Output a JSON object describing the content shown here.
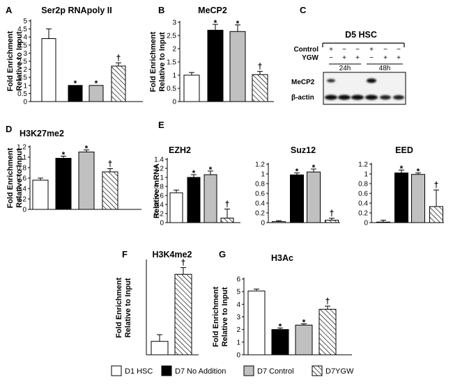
{
  "colors": {
    "d1_hsc": "#ffffff",
    "d7_no_addition": "#000000",
    "d7_control": "#c0c0c0",
    "d7_ygw": "hatch"
  },
  "legend": [
    {
      "key": "d1_hsc",
      "label": "D1 HSC"
    },
    {
      "key": "d7_no_addition",
      "label": "D7 No Addition"
    },
    {
      "key": "d7_control",
      "label": "D7 Control"
    },
    {
      "key": "d7_ygw",
      "label": "D7YGW"
    }
  ],
  "chart_data": [
    {
      "id": "A",
      "type": "bar",
      "panel_label": "A",
      "title": "Ser2p RNApoly II",
      "ylabel": [
        "Fold Enrichment",
        "Relative to Input"
      ],
      "ylim": [
        0,
        5
      ],
      "ticks": [
        0,
        0.5,
        1,
        1.5,
        2,
        2.5,
        3,
        3.5,
        4,
        4.5,
        5
      ],
      "tick_labels": [
        "0",
        "0.5",
        "1",
        "1.5",
        "2",
        "2.5",
        "3",
        "3.5",
        "4",
        "4.5",
        "5"
      ],
      "series": [
        {
          "key": "d1_hsc",
          "value": 3.9,
          "error": 0.6,
          "mark": ""
        },
        {
          "key": "d7_no_addition",
          "value": 1.0,
          "error": 0,
          "mark": "*"
        },
        {
          "key": "d7_control",
          "value": 1.0,
          "error": 0,
          "mark": "*"
        },
        {
          "key": "d7_ygw",
          "value": 2.2,
          "error": 0.2,
          "mark": "†"
        }
      ]
    },
    {
      "id": "B",
      "type": "bar",
      "panel_label": "B",
      "title": "MeCP2",
      "ylabel": [
        "Fold Enrichment",
        "Relative to Input"
      ],
      "ylim": [
        0,
        3
      ],
      "ticks": [
        0,
        0.5,
        1,
        1.5,
        2,
        2.5,
        3
      ],
      "tick_labels": [
        "0",
        "0.5",
        "1",
        "1.5",
        "2",
        "2.5",
        "3"
      ],
      "series": [
        {
          "key": "d1_hsc",
          "value": 1.0,
          "error": 0.1,
          "mark": ""
        },
        {
          "key": "d7_no_addition",
          "value": 2.7,
          "error": 0.22,
          "mark": "*"
        },
        {
          "key": "d7_control",
          "value": 2.65,
          "error": 0.25,
          "mark": "*"
        },
        {
          "key": "d7_ygw",
          "value": 1.02,
          "error": 0.12,
          "mark": "†"
        }
      ]
    },
    {
      "id": "D",
      "type": "bar",
      "panel_label": "D",
      "title": "H3K27me2",
      "ylabel": [
        "Fold Enrichment",
        "Relative to Input"
      ],
      "ylim": [
        0,
        1.2
      ],
      "ticks": [
        0,
        0.2,
        0.4,
        0.6,
        0.8,
        1,
        1.2
      ],
      "tick_labels": [
        "0",
        "0.2",
        "0.4",
        "0.6",
        "0.8",
        "1",
        "1.2"
      ],
      "series": [
        {
          "key": "d1_hsc",
          "value": 0.56,
          "error": 0.04,
          "mark": ""
        },
        {
          "key": "d7_no_addition",
          "value": 0.98,
          "error": 0.04,
          "mark": "*"
        },
        {
          "key": "d7_control",
          "value": 1.1,
          "error": 0.04,
          "mark": "*"
        },
        {
          "key": "d7_ygw",
          "value": 0.72,
          "error": 0.06,
          "mark": "†"
        }
      ]
    },
    {
      "id": "E1",
      "type": "bar",
      "panel_label": "E",
      "title": "EZH2",
      "ylabel": [
        "Relative mRNA"
      ],
      "ylim": [
        0,
        1.4
      ],
      "ticks": [
        0,
        0.2,
        0.4,
        0.6,
        0.8,
        1,
        1.2,
        1.4
      ],
      "tick_labels": [
        "0",
        "0.2",
        "0.4",
        "0.6",
        "0.8",
        "1",
        "1.2",
        "1.4"
      ],
      "series": [
        {
          "key": "d1_hsc",
          "value": 0.66,
          "error": 0.06,
          "mark": ""
        },
        {
          "key": "d7_no_addition",
          "value": 1.0,
          "error": 0.06,
          "mark": "*"
        },
        {
          "key": "d7_control",
          "value": 1.06,
          "error": 0.08,
          "mark": "*"
        },
        {
          "key": "d7_ygw",
          "value": 0.1,
          "error": 0.2,
          "mark": "†"
        }
      ]
    },
    {
      "id": "E2",
      "type": "bar",
      "panel_label": "",
      "title": "Suz12",
      "ylabel": [],
      "ylim": [
        0,
        1.2
      ],
      "ticks": [
        0,
        0.2,
        0.4,
        0.6,
        0.8,
        1,
        1.2
      ],
      "tick_labels": [
        "0",
        "0.2",
        "0.4",
        "0.6",
        "0.8",
        "1",
        "1.2"
      ],
      "series": [
        {
          "key": "d1_hsc",
          "value": 0.02,
          "error": 0.02,
          "mark": ""
        },
        {
          "key": "d7_no_addition",
          "value": 0.98,
          "error": 0.04,
          "mark": "*"
        },
        {
          "key": "d7_control",
          "value": 1.04,
          "error": 0.06,
          "mark": "*"
        },
        {
          "key": "d7_ygw",
          "value": 0.05,
          "error": 0.04,
          "mark": "†"
        }
      ]
    },
    {
      "id": "E3",
      "type": "bar",
      "panel_label": "",
      "title": "EED",
      "ylabel": [],
      "ylim": [
        0,
        1.2
      ],
      "ticks": [
        0,
        0.2,
        0.4,
        0.6,
        0.8,
        1,
        1.2
      ],
      "tick_labels": [
        "0",
        "0.2",
        "0.4",
        "0.6",
        "0.8",
        "1",
        "1.2"
      ],
      "series": [
        {
          "key": "d1_hsc",
          "value": 0.01,
          "error": 0.04,
          "mark": ""
        },
        {
          "key": "d7_no_addition",
          "value": 1.02,
          "error": 0.06,
          "mark": "*"
        },
        {
          "key": "d7_control",
          "value": 0.99,
          "error": 0.03,
          "mark": "*"
        },
        {
          "key": "d7_ygw",
          "value": 0.33,
          "error": 0.34,
          "mark": "†"
        }
      ]
    },
    {
      "id": "F",
      "type": "bar",
      "panel_label": "F",
      "title": "H3K4me2",
      "ylabel": [
        "Fold Enrichment",
        "Relative to Input"
      ],
      "ylim": [
        0,
        7
      ],
      "ticks": [],
      "tick_labels": [],
      "series": [
        {
          "key": "d1_hsc",
          "value": 1.0,
          "error": 0.5,
          "mark": ""
        },
        {
          "key": "d7_ygw",
          "value": 6.0,
          "error": 0.5,
          "mark": "†"
        }
      ]
    },
    {
      "id": "G",
      "type": "bar",
      "panel_label": "G",
      "title": "H3Ac",
      "ylabel": [
        "Fold Enrichment",
        "Relative to Input"
      ],
      "ylim": [
        0,
        6
      ],
      "ticks": [
        0,
        1,
        2,
        3,
        4,
        5,
        6
      ],
      "tick_labels": [
        "0",
        "1",
        "2",
        "3",
        "4",
        "5",
        "6"
      ],
      "series": [
        {
          "key": "d1_hsc",
          "value": 5.05,
          "error": 0.15,
          "mark": ""
        },
        {
          "key": "d7_no_addition",
          "value": 2.0,
          "error": 0.12,
          "mark": "*"
        },
        {
          "key": "d7_control",
          "value": 2.35,
          "error": 0.1,
          "mark": "*"
        },
        {
          "key": "d7_ygw",
          "value": 3.6,
          "error": 0.25,
          "mark": "†"
        }
      ]
    }
  ],
  "blot": {
    "panel_label": "C",
    "title": "D5 HSC",
    "row_labels": [
      "Control",
      "YGW"
    ],
    "lanes": [
      {
        "control": "+",
        "ygw": "−"
      },
      {
        "control": "−",
        "ygw": "+"
      },
      {
        "control": "−",
        "ygw": "+"
      },
      {
        "control": "+",
        "ygw": "−"
      },
      {
        "control": "−",
        "ygw": "+"
      },
      {
        "control": "−",
        "ygw": "+"
      }
    ],
    "time_labels": [
      "24h",
      "48h"
    ],
    "band_labels": [
      "MeCP2",
      "β-actin"
    ]
  }
}
